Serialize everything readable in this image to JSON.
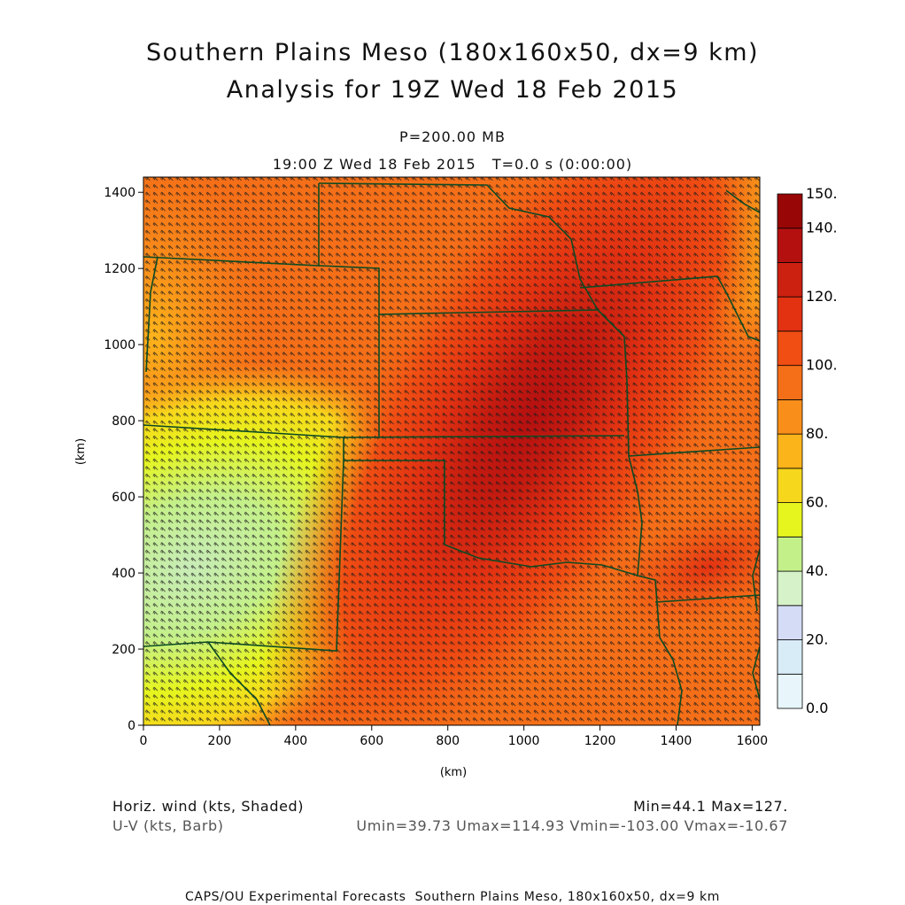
{
  "header": {
    "title_line1": "Southern Plains Meso (180x160x50, dx=9 km)",
    "title_line2": "Analysis for 19Z Wed 18 Feb 2015",
    "level": "P=200.00 MB",
    "time_line": "19:00 Z Wed 18 Feb 2015   T=0.0 s (0:00:00)"
  },
  "axes": {
    "x_label": "(km)",
    "y_label": "(km)",
    "x_ticks": [
      "0",
      "200",
      "400",
      "600",
      "800",
      "1000",
      "1200",
      "1400",
      "1600"
    ],
    "y_ticks": [
      "0",
      "200",
      "400",
      "600",
      "800",
      "1000",
      "1200",
      "1400"
    ],
    "x_range_km": [
      0,
      1620
    ],
    "y_range_km": [
      0,
      1440
    ]
  },
  "colorbar": {
    "labels": [
      "0.0",
      "20.",
      "40.",
      "60.",
      "80.",
      "100.",
      "120.",
      "140.",
      "150."
    ],
    "levels": [
      0,
      10,
      20,
      30,
      40,
      50,
      60,
      70,
      80,
      90,
      100,
      110,
      120,
      130,
      140,
      150
    ],
    "colors": [
      "#e8f6fb",
      "#d8ecf8",
      "#d4dcf6",
      "#d6f2c8",
      "#c4f08a",
      "#e6f51e",
      "#f7d71c",
      "#fcb41b",
      "#f98f1a",
      "#f56f18",
      "#f04e13",
      "#e23212",
      "#cc2011",
      "#b51010",
      "#990606"
    ]
  },
  "map": {
    "field": "horizontal wind speed (kts), shaded",
    "overlay": "wind barbs",
    "boundary_color": "#0c4a22",
    "barb_color": "#1a1a1a"
  },
  "footer": {
    "left_line1": "Horiz. wind (kts, Shaded)",
    "left_line2": "U-V (kts, Barb)",
    "right_line1": "Min=44.1 Max=127.",
    "right_line2": "Umin=39.73 Umax=114.93 Vmin=-103.00 Vmax=-10.67",
    "credit": "CAPS/OU Experimental Forecasts  Southern Plains Meso, 180x160x50, dx=9 km"
  }
}
